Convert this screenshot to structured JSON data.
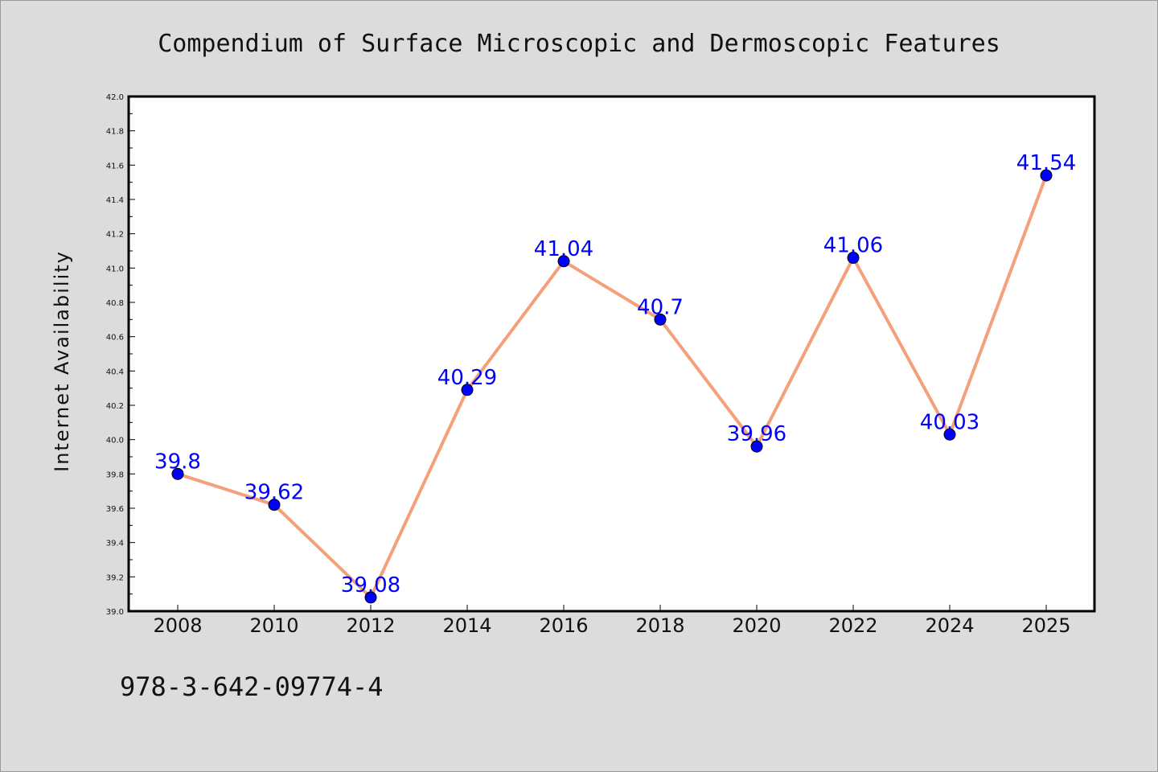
{
  "footer": {
    "code": "978-3-642-09774-4"
  },
  "colors": {
    "background": "#dcdcdc",
    "plot_background": "#ffffff",
    "line": "#f4a07a",
    "marker": "#0000ff",
    "label": "#0000ff",
    "axes": "#000000"
  },
  "chart_data": {
    "type": "line",
    "title": "Compendium of Surface Microscopic and Dermoscopic Features",
    "xlabel": "",
    "ylabel": "Internet Availability",
    "categories": [
      "2008",
      "2010",
      "2012",
      "2014",
      "2016",
      "2018",
      "2020",
      "2022",
      "2024",
      "2025"
    ],
    "series": [
      {
        "values": [
          39.8,
          39.62,
          39.08,
          40.29,
          41.04,
          40.7,
          39.96,
          41.06,
          40.03,
          41.54
        ],
        "labels": [
          "39.8",
          "39.62",
          "39.08",
          "40.29",
          "41.04",
          "40.7",
          "39.96",
          "41.06",
          "40.03",
          "41.54"
        ]
      }
    ],
    "ylim": [
      39.0,
      42.0
    ],
    "yticks": [
      "39.0",
      "39.2",
      "39.4",
      "39.6",
      "39.8",
      "40.0",
      "40.2",
      "40.4",
      "40.6",
      "40.8",
      "41.0",
      "41.2",
      "41.4",
      "41.6",
      "41.8",
      "42.0"
    ],
    "grid": false,
    "legend": "none",
    "marker": "circle"
  }
}
